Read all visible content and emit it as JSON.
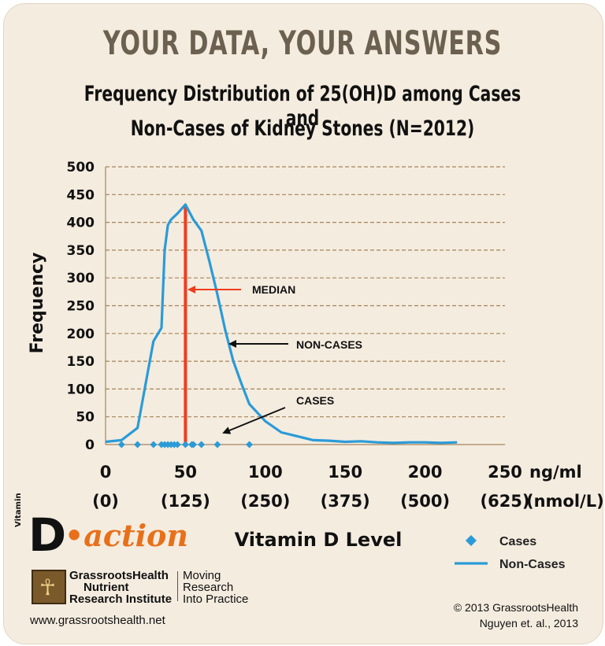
{
  "header": {
    "headline": "YOUR DATA, YOUR ANSWERS",
    "title_line1": "Frequency Distribution of 25(OH)D among  Cases and",
    "title_line2": "Non-Cases of Kidney Stones (N=2012)"
  },
  "chart_data": {
    "type": "line",
    "ylabel": "Frequency",
    "xlabel": "Vitamin D Level",
    "ylim": [
      0,
      500
    ],
    "xlim": [
      0,
      250
    ],
    "y_ticks": [
      0,
      50,
      100,
      150,
      200,
      250,
      300,
      350,
      400,
      450,
      500
    ],
    "x_ticks": [
      0,
      50,
      100,
      150,
      200,
      250
    ],
    "x_tick_labels_nmol": [
      "(0)",
      "(125)",
      "(250)",
      "(375)",
      "(500)",
      "(625)"
    ],
    "x_unit_ngml": "ng/ml",
    "x_unit_nmol": "(nmol/L)",
    "grid": "horizontal dashed",
    "legend_position": "bottom-right",
    "median": {
      "x": 50,
      "label": "MEDIAN",
      "color": "#f03c1e"
    },
    "annotations": [
      {
        "text": "MEDIAN",
        "target": "median"
      },
      {
        "text": "NON-CASES",
        "target": "non-cases"
      },
      {
        "text": "CASES",
        "target": "cases"
      }
    ],
    "series": [
      {
        "name": "Cases",
        "kind": "scatter",
        "color": "#2a9bd8",
        "x": [
          10,
          20,
          30,
          35,
          37,
          39,
          41,
          43,
          45,
          50,
          54,
          55,
          60,
          70,
          90
        ],
        "y": [
          0,
          0,
          0,
          0,
          0,
          0,
          0,
          0,
          0,
          0,
          0,
          0,
          0,
          0,
          0
        ]
      },
      {
        "name": "Non-Cases",
        "kind": "line",
        "color": "#2a9bd8",
        "x": [
          0,
          10,
          20,
          30,
          35,
          37,
          39,
          41,
          45,
          50,
          55,
          60,
          65,
          70,
          75,
          80,
          85,
          90,
          100,
          110,
          120,
          130,
          140,
          150,
          160,
          170,
          180,
          190,
          200,
          210,
          220
        ],
        "y": [
          5,
          8,
          30,
          186,
          210,
          350,
          395,
          405,
          416,
          432,
          405,
          385,
          330,
          270,
          205,
          150,
          110,
          73,
          42,
          22,
          15,
          8,
          7,
          5,
          6,
          4,
          3,
          4,
          4,
          3,
          4
        ]
      }
    ]
  },
  "branding": {
    "vitamin_word": "Vitamin",
    "d_letter": "D",
    "action_word": "•action",
    "org_line1": "GrassrootsHealth",
    "org_line2": "Nutrient",
    "org_line3": "Research Institute",
    "tagline1": "Moving",
    "tagline2": "Research",
    "tagline3": "Into Practice",
    "url": "www.grassrootshealth.net",
    "copyright": "© 2013 GrassrootsHealth",
    "citation": "Nguyen et. al., 2013"
  }
}
